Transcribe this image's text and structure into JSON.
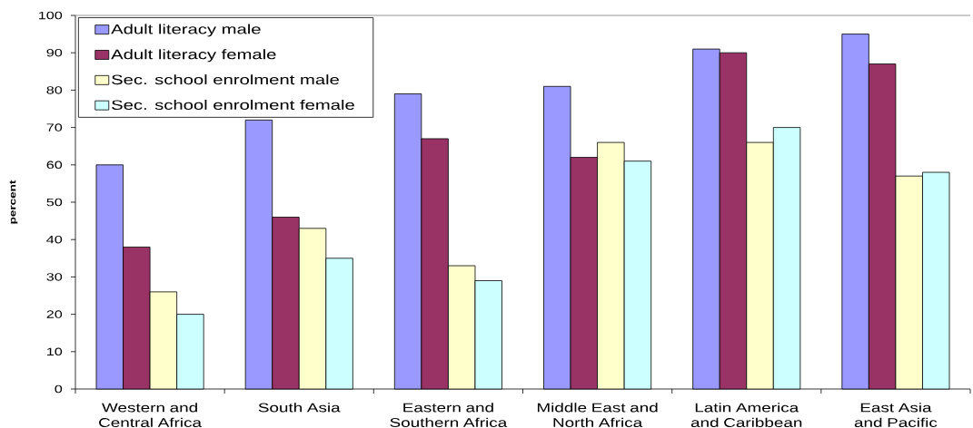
{
  "chart_data": {
    "type": "bar",
    "ylabel": "percent",
    "categories": [
      "Western and Central Africa",
      "South Asia",
      "Eastern and Southern Africa",
      "Middle East and North Africa",
      "Latin America and Caribbean",
      "East Asia and Pacific"
    ],
    "series": [
      {
        "name": "Adult literacy male",
        "color": "#9999ff",
        "values": [
          60,
          72,
          79,
          81,
          91,
          95
        ]
      },
      {
        "name": "Adult literacy female",
        "color": "#993366",
        "values": [
          38,
          46,
          67,
          62,
          90,
          87
        ]
      },
      {
        "name": "Sec. school enrolment male",
        "color": "#ffffcc",
        "values": [
          26,
          43,
          33,
          66,
          66,
          57
        ]
      },
      {
        "name": "Sec. school enrolment female",
        "color": "#ccffff",
        "values": [
          20,
          35,
          29,
          61,
          70,
          58
        ]
      }
    ],
    "ylim": [
      0,
      100
    ],
    "yticks": [
      0,
      10,
      20,
      30,
      40,
      50,
      60,
      70,
      80,
      90,
      100
    ],
    "legend": "top left"
  }
}
